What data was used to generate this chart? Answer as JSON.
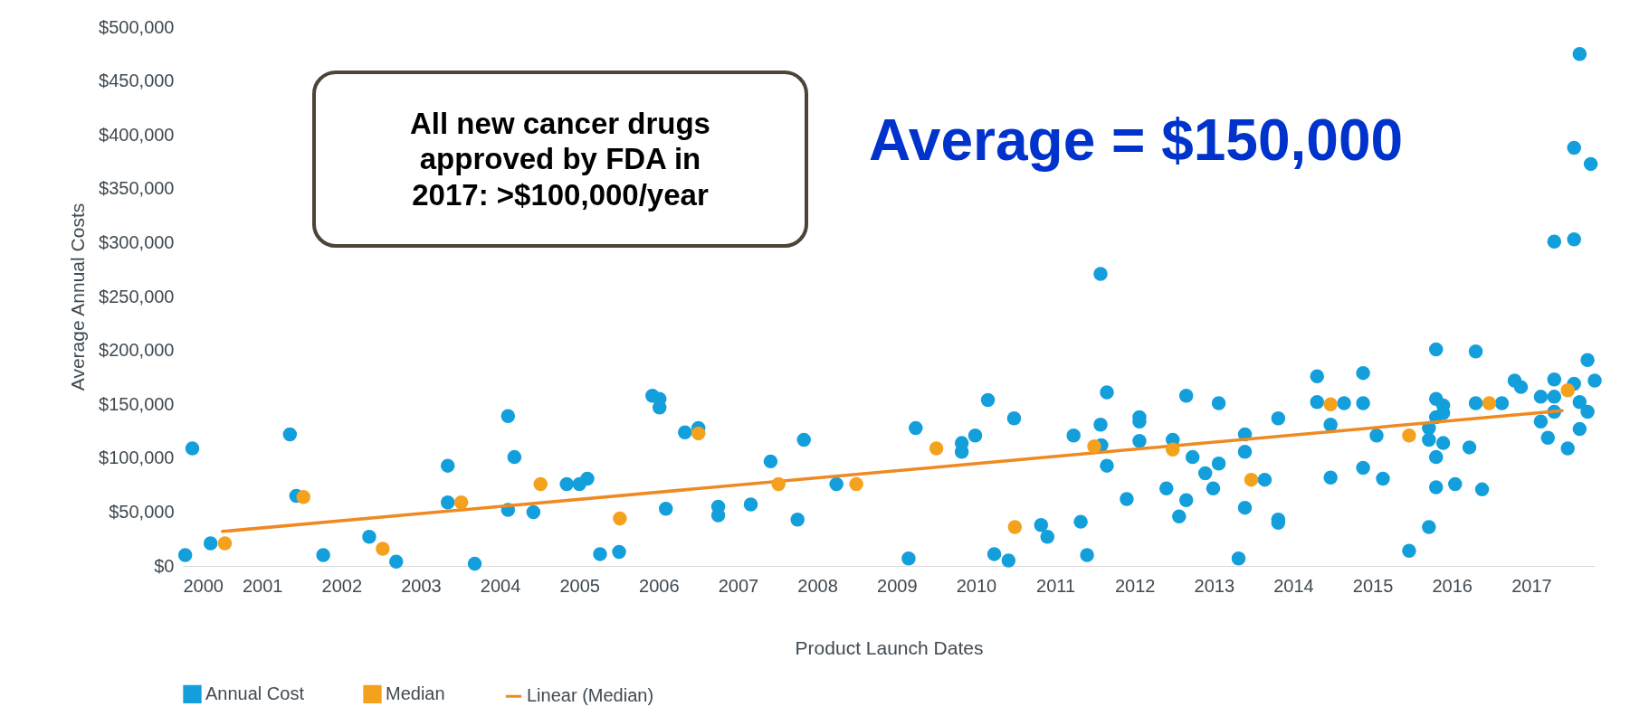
{
  "chart_data": {
    "type": "scatter",
    "xlabel": "Product Launch Dates",
    "ylabel": "Average Annual Costs",
    "annotations": [
      "All new cancer drugs approved by FDA in 2017: >$100,000/year",
      "Average = $150,000"
    ],
    "xlim": [
      2000,
      2017.8
    ],
    "ylim": [
      0,
      500000
    ],
    "xticks": [
      2000,
      2001,
      2002,
      2003,
      2004,
      2005,
      2006,
      2007,
      2008,
      2009,
      2010,
      2011,
      2012,
      2013,
      2014,
      2015,
      2016,
      2017
    ],
    "yticks": [
      {
        "value": 0,
        "label": "$0"
      },
      {
        "value": 50000,
        "label": "$50,000"
      },
      {
        "value": 100000,
        "label": "$100,000"
      },
      {
        "value": 150000,
        "label": "$150,000"
      },
      {
        "value": 200000,
        "label": "$200,000"
      },
      {
        "value": 250000,
        "label": "$250,000"
      },
      {
        "value": 300000,
        "label": "$300,000"
      },
      {
        "value": 350000,
        "label": "$350,000"
      },
      {
        "value": 400000,
        "label": "$400,000"
      },
      {
        "value": 450000,
        "label": "$450,000"
      },
      {
        "value": 500000,
        "label": "$500,000"
      }
    ],
    "legend": "bottom",
    "marker": "circle",
    "series": [
      {
        "name": "Annual Cost",
        "type": "scatter",
        "color": "#139fdb",
        "x": [
          2000.03,
          2000.12,
          2000.35,
          2001.35,
          2001.43,
          2001.77,
          2002.35,
          2002.69,
          2003.34,
          2003.34,
          2003.68,
          2004.1,
          2004.18,
          2004.1,
          2004.42,
          2004.84,
          2005.0,
          2005.1,
          2005.26,
          2005.5,
          2005.92,
          2006.01,
          2006.01,
          2006.09,
          2006.33,
          2006.5,
          2006.75,
          2006.75,
          2007.16,
          2007.41,
          2007.75,
          2007.83,
          2008.24,
          2009.15,
          2009.24,
          2009.82,
          2009.82,
          2009.99,
          2010.15,
          2010.23,
          2010.41,
          2010.48,
          2010.82,
          2010.9,
          2011.23,
          2011.32,
          2011.4,
          2011.57,
          2011.57,
          2011.58,
          2011.65,
          2011.65,
          2011.9,
          2012.06,
          2012.06,
          2012.06,
          2012.4,
          2012.48,
          2012.56,
          2012.65,
          2012.65,
          2012.73,
          2012.89,
          2012.99,
          2013.06,
          2013.06,
          2013.31,
          2013.39,
          2013.39,
          2013.39,
          2013.64,
          2013.81,
          2013.81,
          2013.81,
          2014.3,
          2014.3,
          2014.47,
          2014.47,
          2014.64,
          2014.88,
          2014.88,
          2014.88,
          2015.05,
          2015.13,
          2015.46,
          2015.71,
          2015.71,
          2015.71,
          2015.8,
          2015.8,
          2015.8,
          2015.89,
          2015.89,
          2015.89,
          2015.8,
          2015.8,
          2016.04,
          2016.22,
          2016.3,
          2016.3,
          2016.38,
          2016.63,
          2016.79,
          2016.87,
          2017.12,
          2017.12,
          2017.21,
          2017.29,
          2017.29,
          2017.29,
          2017.29,
          2017.46,
          2017.54,
          2017.54,
          2017.54,
          2017.61,
          2017.61,
          2017.61,
          2017.71,
          2017.71,
          2017.75,
          2017.8
        ],
        "values": [
          10000,
          109000,
          21000,
          122000,
          65000,
          10000,
          27000,
          4000,
          93000,
          59000,
          2000,
          139000,
          101000,
          52000,
          50000,
          76000,
          76000,
          81000,
          11000,
          13000,
          158000,
          155000,
          147000,
          53000,
          124000,
          128000,
          55000,
          47000,
          57000,
          97000,
          43000,
          117000,
          76000,
          7000,
          128000,
          114000,
          106000,
          121000,
          154000,
          11000,
          5000,
          137000,
          38000,
          27000,
          121000,
          41000,
          10000,
          271000,
          131000,
          112000,
          161000,
          93000,
          62000,
          138000,
          134000,
          116000,
          72000,
          117000,
          46000,
          61000,
          158000,
          101000,
          86000,
          72000,
          95000,
          151000,
          7000,
          54000,
          106000,
          122000,
          80000,
          137000,
          43000,
          40000,
          176000,
          152000,
          131000,
          82000,
          151000,
          179000,
          151000,
          91000,
          121000,
          81000,
          14000,
          36000,
          117000,
          128000,
          201000,
          155000,
          138000,
          149000,
          142000,
          114000,
          101000,
          73000,
          76000,
          110000,
          199000,
          151000,
          71000,
          151000,
          172000,
          166000,
          157000,
          134000,
          119000,
          301000,
          173000,
          157000,
          143000,
          109000,
          388000,
          303000,
          169000,
          475000,
          152000,
          127000,
          191000,
          143000,
          373000,
          172000
        ]
      },
      {
        "name": "Median",
        "type": "scatter",
        "color": "#f4a11d",
        "x": [
          2000.53,
          2001.52,
          2002.52,
          2003.51,
          2004.51,
          2005.51,
          2006.5,
          2007.51,
          2008.49,
          2009.5,
          2010.49,
          2011.49,
          2012.48,
          2013.47,
          2014.47,
          2015.46,
          2016.47,
          2017.46
        ],
        "values": [
          21000,
          64000,
          16000,
          59000,
          76000,
          44000,
          123000,
          76000,
          76000,
          109000,
          36000,
          111000,
          108000,
          80000,
          150000,
          121000,
          151000,
          163000
        ]
      },
      {
        "name": "Linear (Median)",
        "type": "line",
        "marker": "none",
        "color": "#ef8a22",
        "x": [
          2000.5,
          2017.39
        ],
        "values": [
          32000,
          144000
        ]
      }
    ]
  }
}
